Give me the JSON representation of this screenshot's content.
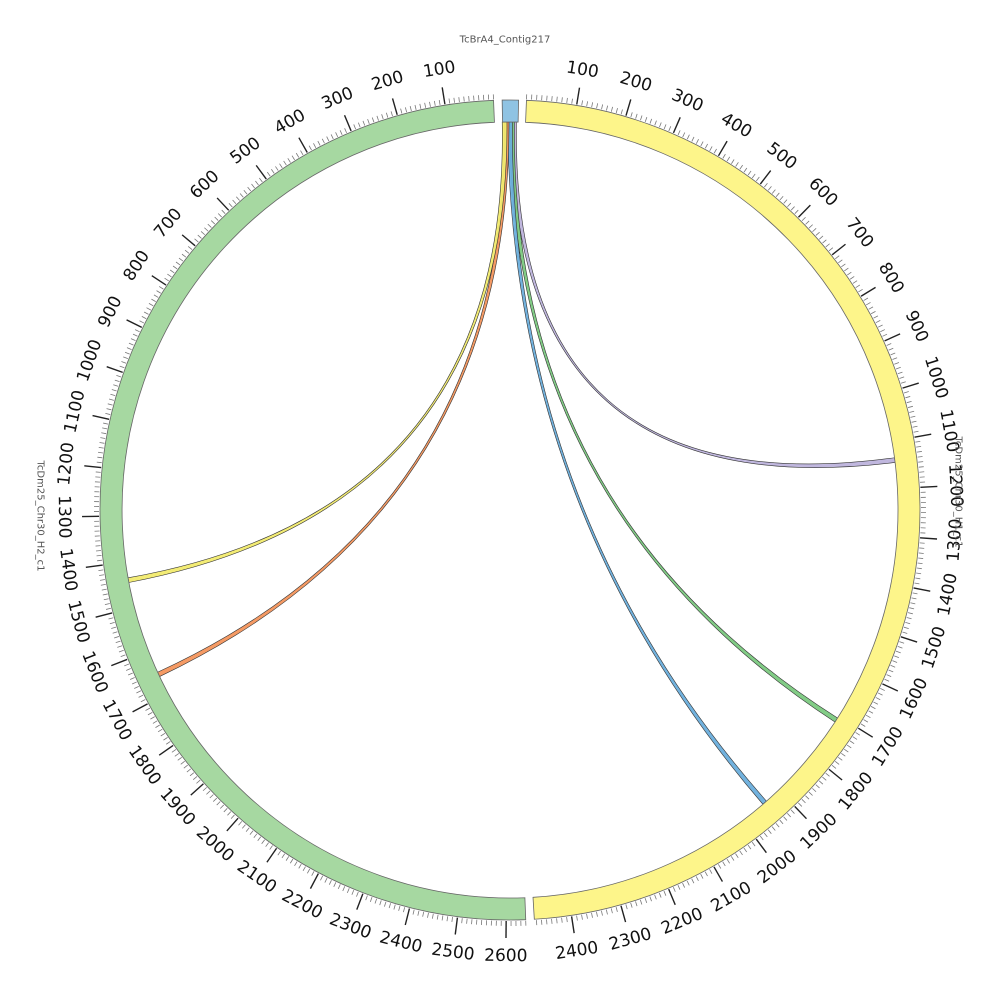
{
  "diagram": {
    "type": "circos-synteny",
    "segments": [
      {
        "name": "TcBrA4_Contig217",
        "color": "#8fc3e3",
        "tick_labels": []
      },
      {
        "name": "TcDm25_Chr30_H1_c1",
        "color": "#fdf58a",
        "tick_labels": [
          "100",
          "200",
          "300",
          "400",
          "500",
          "600",
          "700",
          "800",
          "900",
          "1000",
          "1100",
          "1200",
          "1300",
          "1400",
          "1500",
          "1600",
          "1700",
          "1800",
          "1900",
          "2000",
          "2100",
          "2200",
          "2300",
          "2400"
        ]
      },
      {
        "name": "TcDm25_Chr30_H2_c1",
        "color": "#a6d8a1",
        "tick_labels": [
          "100",
          "200",
          "300",
          "400",
          "500",
          "600",
          "700",
          "800",
          "900",
          "1000",
          "1100",
          "1200",
          "1300",
          "1400",
          "1500",
          "1600",
          "1700",
          "1800",
          "1900",
          "2000",
          "2100",
          "2200",
          "2300",
          "2400",
          "2500",
          "2600"
        ]
      }
    ],
    "links": [
      {
        "from": "TcBrA4_Contig217",
        "to": "TcDm25_Chr30_H1_c1",
        "to_position": 1140,
        "color": "#bdb3dc"
      },
      {
        "from": "TcBrA4_Contig217",
        "to": "TcDm25_Chr30_H1_c1",
        "to_position": 1710,
        "color": "#7bc97f"
      },
      {
        "from": "TcBrA4_Contig217",
        "to": "TcDm25_Chr30_H1_c1",
        "to_position": 1940,
        "color": "#6aaedc"
      },
      {
        "from": "TcBrA4_Contig217",
        "to": "TcDm25_Chr30_H2_c1",
        "to_position": 1655,
        "color": "#f4955c"
      },
      {
        "from": "TcBrA4_Contig217",
        "to": "TcDm25_Chr30_H2_c1",
        "to_position": 1440,
        "color": "#f2eb6e"
      }
    ]
  }
}
